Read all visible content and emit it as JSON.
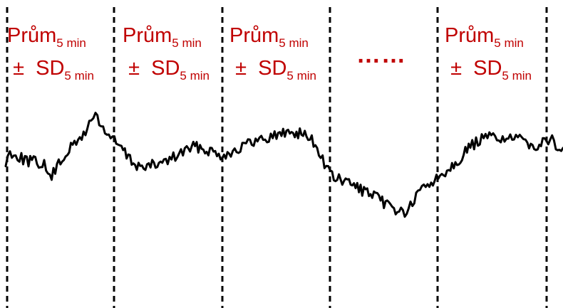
{
  "colors": {
    "label": "#c00000",
    "lines": "#000000",
    "background": "#ffffff"
  },
  "segment_label": {
    "mean_word": "Prům",
    "mean_sub": "5 min",
    "pm": "±",
    "sd_word": "SD",
    "sd_sub": "5 min"
  },
  "ellipsis": "……",
  "segments_with_labels": 4
}
